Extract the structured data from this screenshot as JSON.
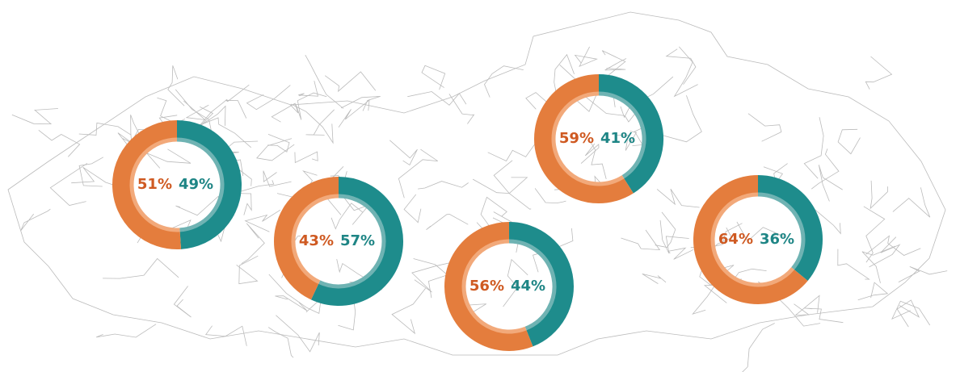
{
  "chart_data": [
    {
      "type": "donut",
      "values": [
        51,
        49
      ],
      "value_labels": [
        "51%",
        "49%"
      ],
      "colors": [
        "#e47d3d",
        "#1e8c8c"
      ]
    },
    {
      "type": "donut",
      "values": [
        43,
        57
      ],
      "value_labels": [
        "43%",
        "57%"
      ],
      "colors": [
        "#e47d3d",
        "#1e8c8c"
      ]
    },
    {
      "type": "donut",
      "values": [
        56,
        44
      ],
      "value_labels": [
        "56%",
        "44%"
      ],
      "colors": [
        "#e47d3d",
        "#1e8c8c"
      ]
    },
    {
      "type": "donut",
      "values": [
        59,
        41
      ],
      "value_labels": [
        "59%",
        "41%"
      ],
      "colors": [
        "#e47d3d",
        "#1e8c8c"
      ]
    },
    {
      "type": "donut",
      "values": [
        64,
        36
      ],
      "value_labels": [
        "64%",
        "36%"
      ],
      "colors": [
        "#e47d3d",
        "#1e8c8c"
      ]
    }
  ]
}
